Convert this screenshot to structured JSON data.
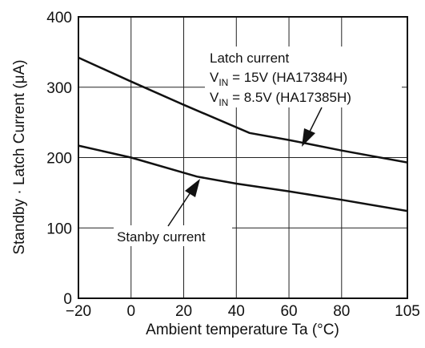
{
  "chart_data": {
    "type": "line",
    "xlabel": "Ambient temperature Ta (°C)",
    "ylabel": "Standby · Latch Current  (μA)",
    "xlim": [
      -20,
      105
    ],
    "ylim": [
      0,
      400
    ],
    "x_ticks": [
      "−20",
      "0",
      "20",
      "40",
      "60",
      "80",
      "105"
    ],
    "x_tick_values": [
      -20,
      0,
      20,
      40,
      60,
      80,
      105
    ],
    "y_ticks": [
      "0",
      "100",
      "200",
      "300",
      "400"
    ],
    "y_tick_values": [
      0,
      100,
      200,
      300,
      400
    ],
    "grid": true,
    "series": [
      {
        "name": "Latch current",
        "x": [
          -20,
          0,
          20,
          45,
          60,
          80,
          105
        ],
        "y": [
          342,
          308,
          275,
          235,
          225,
          210,
          193
        ]
      },
      {
        "name": "Stanby current",
        "x": [
          -20,
          0,
          25,
          40,
          60,
          80,
          105
        ],
        "y": [
          217,
          200,
          173,
          163,
          152,
          140,
          124
        ]
      }
    ],
    "annotations": {
      "latch_line1": "Latch current",
      "latch_line2_prefix": "V",
      "latch_line2_sub": "IN",
      "latch_line2_rest": " = 15V (HA17384H)",
      "latch_line3_prefix": "V",
      "latch_line3_sub": "IN",
      "latch_line3_rest": " = 8.5V (HA17385H)",
      "standby_label": "Stanby current"
    }
  }
}
